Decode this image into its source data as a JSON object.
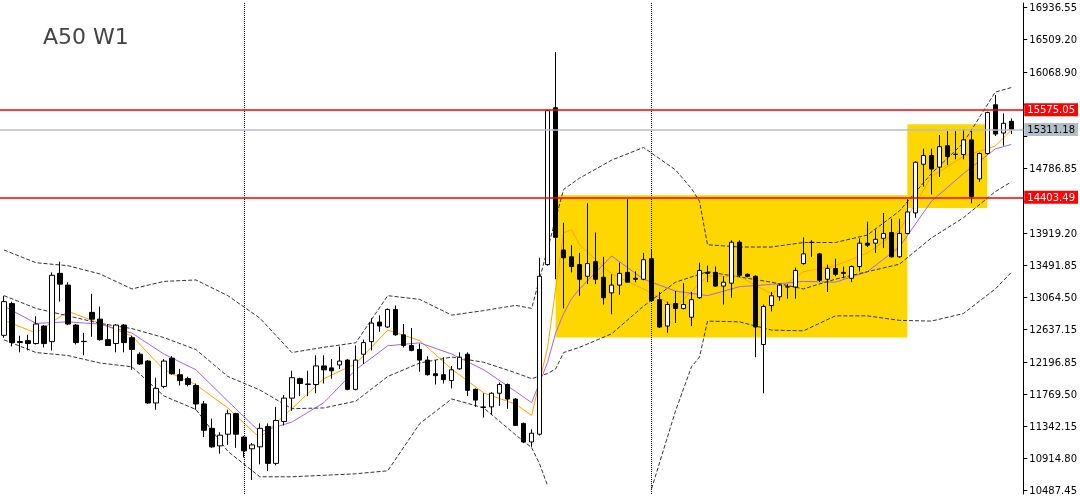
{
  "chart_data": {
    "type": "candlestick",
    "title": "A50 W1",
    "categories": [
      null,
      null,
      null,
      null,
      null,
      null,
      null,
      null,
      null,
      null,
      null,
      null,
      null,
      null,
      null,
      null,
      null,
      null,
      null,
      null,
      null,
      null,
      null,
      null,
      null,
      null,
      null,
      null,
      null,
      null,
      null,
      null,
      null,
      null,
      null,
      null,
      null,
      null,
      null,
      null,
      null,
      null,
      null,
      null,
      null,
      null,
      null,
      null,
      null,
      null,
      null,
      null,
      null,
      null,
      null,
      null,
      null,
      null,
      null,
      null,
      null,
      null,
      null,
      null,
      null,
      null,
      null,
      null,
      null,
      null,
      null,
      null,
      null,
      null,
      null,
      null,
      null,
      null,
      null,
      null,
      null,
      null,
      null,
      null,
      null,
      null,
      null,
      null,
      null,
      null,
      null,
      null,
      null,
      null,
      null,
      null,
      null,
      null,
      null,
      null,
      null,
      null,
      null,
      null,
      null,
      null,
      null,
      null,
      null,
      null,
      null,
      null,
      null,
      null,
      null,
      null,
      null,
      null,
      null,
      null,
      null,
      null,
      null,
      null,
      null,
      null,
      null,
      null
    ],
    "series": [
      {
        "color": "#000000",
        "ohlc": [
          [
            12560,
            13088,
            12528,
            13010
          ],
          [
            12984,
            13010,
            12411,
            12463
          ],
          [
            12476,
            12554,
            12333,
            12463
          ],
          [
            12489,
            12567,
            12359,
            12450
          ],
          [
            12450,
            12815,
            12437,
            12711
          ],
          [
            12684,
            12697,
            12398,
            12450
          ],
          [
            12476,
            13401,
            12359,
            13362
          ],
          [
            13388,
            13544,
            13010,
            13244
          ],
          [
            13231,
            13270,
            12697,
            12711
          ],
          [
            12697,
            12711,
            12437,
            12463
          ],
          [
            12476,
            12593,
            12294,
            12480
          ],
          [
            12867,
            13114,
            12541,
            12776
          ],
          [
            12776,
            12945,
            12489,
            12502
          ],
          [
            12502,
            12711,
            12424,
            12424
          ],
          [
            12450,
            12711,
            12333,
            12697
          ],
          [
            12697,
            12711,
            12333,
            12463
          ],
          [
            12528,
            12554,
            12099,
            12372
          ],
          [
            12307,
            12333,
            12164,
            12177
          ],
          [
            12216,
            12230,
            11645,
            11656
          ],
          [
            11656,
            11994,
            11565,
            11851
          ],
          [
            11877,
            12242,
            11851,
            12216
          ],
          [
            12255,
            12281,
            12034,
            12047
          ],
          [
            12034,
            12112,
            11890,
            11955
          ],
          [
            11981,
            12007,
            11877,
            11903
          ],
          [
            11890,
            11916,
            11565,
            11643
          ],
          [
            11643,
            11682,
            11200,
            11291
          ],
          [
            11317,
            11448,
            11057,
            11070
          ],
          [
            11083,
            11265,
            10979,
            11226
          ],
          [
            11239,
            11565,
            11096,
            11513
          ],
          [
            11513,
            11526,
            11057,
            11239
          ],
          [
            11200,
            11215,
            10927,
            11018
          ],
          [
            11044,
            11122,
            10627,
            11096
          ],
          [
            11070,
            11383,
            10836,
            11317
          ],
          [
            11343,
            11383,
            10745,
            10849
          ],
          [
            10849,
            11604,
            10823,
            11422
          ],
          [
            11409,
            11760,
            11356,
            11721
          ],
          [
            11721,
            12086,
            11552,
            11994
          ],
          [
            11981,
            11994,
            11747,
            11916
          ],
          [
            11903,
            12086,
            11747,
            11910
          ],
          [
            11903,
            12294,
            11786,
            12151
          ],
          [
            12151,
            12294,
            11916,
            12099
          ],
          [
            12125,
            12242,
            11981,
            12086
          ],
          [
            12164,
            12411,
            12112,
            12216
          ],
          [
            12229,
            12242,
            11825,
            11838
          ],
          [
            11838,
            12424,
            11825,
            12229
          ],
          [
            12307,
            12502,
            12177,
            12463
          ],
          [
            12476,
            12789,
            12359,
            12724
          ],
          [
            12737,
            12828,
            12606,
            12684
          ],
          [
            12671,
            12919,
            12658,
            12906
          ],
          [
            12906,
            12958,
            12554,
            12567
          ],
          [
            12567,
            12711,
            12398,
            12424
          ],
          [
            12424,
            12658,
            12346,
            12359
          ],
          [
            12372,
            12450,
            12073,
            12229
          ],
          [
            12229,
            12281,
            12021,
            12034
          ],
          [
            12047,
            12229,
            11903,
            12021
          ],
          [
            12034,
            12268,
            11916,
            11968
          ],
          [
            11955,
            12151,
            11851,
            12099
          ],
          [
            12112,
            12333,
            12099,
            12268
          ],
          [
            12307,
            12333,
            11747,
            11825
          ],
          [
            11838,
            11851,
            11604,
            11695
          ],
          [
            11604,
            11786,
            11461,
            11595
          ],
          [
            11604,
            11799,
            11500,
            11786
          ],
          [
            11786,
            11929,
            11617,
            11903
          ],
          [
            11903,
            11916,
            11578,
            11708
          ],
          [
            11708,
            11721,
            11350,
            11356
          ],
          [
            11383,
            11396,
            11122,
            11135
          ],
          [
            11135,
            11304,
            11070,
            11252
          ],
          [
            11239,
            13596,
            11220,
            13349
          ],
          [
            13505,
            15575,
            13490,
            15562
          ],
          [
            15601,
            16343,
            13309,
            13869
          ],
          [
            13700,
            14065,
            12919,
            13596
          ],
          [
            13609,
            13765,
            13401,
            13479
          ],
          [
            13505,
            13661,
            13088,
            13309
          ],
          [
            13349,
            14325,
            13244,
            13518
          ],
          [
            13544,
            13934,
            13244,
            13309
          ],
          [
            13336,
            13609,
            12971,
            13062
          ],
          [
            13127,
            13375,
            12841,
            13231
          ],
          [
            13231,
            13531,
            13101,
            13388
          ],
          [
            13401,
            14377,
            13270,
            13270
          ],
          [
            13322,
            13414,
            13270,
            13309
          ],
          [
            13309,
            13661,
            13296,
            13570
          ],
          [
            13583,
            13713,
            13010,
            13023
          ],
          [
            13036,
            13140,
            12658,
            12671
          ],
          [
            12684,
            13010,
            12593,
            12971
          ],
          [
            12984,
            13153,
            12724,
            12919
          ],
          [
            12919,
            13257,
            12906,
            12971
          ],
          [
            12802,
            13140,
            12684,
            13036
          ],
          [
            13062,
            13531,
            13049,
            13427
          ],
          [
            13401,
            13492,
            13270,
            13388
          ],
          [
            13401,
            13479,
            13205,
            13218
          ],
          [
            13218,
            13349,
            12971,
            13270
          ],
          [
            13257,
            13830,
            13062,
            13804
          ],
          [
            13804,
            13830,
            13336,
            13362
          ],
          [
            13375,
            13388,
            13336,
            13349
          ],
          [
            13349,
            13362,
            12268,
            12671
          ],
          [
            12437,
            12971,
            11786,
            12945
          ],
          [
            12958,
            13140,
            12880,
            13088
          ],
          [
            13075,
            13244,
            13023,
            13231
          ],
          [
            13205,
            13244,
            13049,
            13210
          ],
          [
            13205,
            13466,
            13049,
            13427
          ],
          [
            13518,
            13869,
            13505,
            13648
          ],
          [
            13804,
            13830,
            13609,
            13800
          ],
          [
            13648,
            13661,
            13270,
            13296
          ],
          [
            13309,
            13505,
            13140,
            13453
          ],
          [
            13453,
            13583,
            13349,
            13375
          ],
          [
            13401,
            13479,
            13322,
            13388
          ],
          [
            13322,
            13492,
            13270,
            13479
          ],
          [
            13479,
            13856,
            13414,
            13791
          ],
          [
            13791,
            14078,
            13739,
            13765
          ],
          [
            13791,
            13973,
            13661,
            13843
          ],
          [
            13856,
            14195,
            13726,
            13921
          ],
          [
            13934,
            14117,
            13600,
            13609
          ],
          [
            13609,
            14117,
            13596,
            13921
          ],
          [
            13921,
            14377,
            13910,
            14208
          ],
          [
            14195,
            14885,
            14130,
            14872
          ],
          [
            14846,
            15054,
            14546,
            14963
          ],
          [
            14963,
            15054,
            14442,
            14781
          ],
          [
            14807,
            15236,
            14676,
            15080
          ],
          [
            15093,
            15288,
            14833,
            14950
          ],
          [
            14976,
            15288,
            14911,
            14980
          ],
          [
            14976,
            15314,
            14911,
            15171
          ],
          [
            15171,
            15314,
            14325,
            14416
          ],
          [
            14650,
            15002,
            14611,
            14989
          ],
          [
            14989,
            15549,
            14976,
            15536
          ],
          [
            15640,
            15770,
            15223,
            15249
          ],
          [
            15263,
            15523,
            15093,
            15393
          ],
          [
            15419,
            15458,
            15249,
            15311
          ],
          null
        ]
      },
      {
        "type": "line",
        "color": "#ffa500",
        "line_style": "solid",
        "values": [
          12760,
          null,
          null,
          null,
          12590,
          null,
          null,
          null,
          12880,
          null,
          null,
          null,
          12720,
          null,
          null,
          null,
          12550,
          null,
          null,
          null,
          12100,
          null,
          null,
          null,
          11900,
          null,
          null,
          null,
          11590,
          null,
          null,
          null,
          11190,
          null,
          null,
          null,
          11580,
          null,
          null,
          null,
          11980,
          null,
          null,
          null,
          12180,
          null,
          null,
          null,
          12630,
          null,
          null,
          null,
          12490,
          null,
          null,
          null,
          12110,
          null,
          null,
          null,
          11790,
          null,
          null,
          null,
          11640,
          null,
          11490,
          null,
          12400,
          13180,
          13930,
          13970,
          13770,
          null,
          null,
          null,
          13380,
          null,
          null,
          null,
          13180,
          null,
          null,
          null,
          12940,
          null,
          null,
          null,
          13350,
          null,
          null,
          null,
          13350,
          null,
          null,
          null,
          13110,
          null,
          null,
          null,
          13410,
          null,
          null,
          null,
          13490,
          null,
          null,
          null,
          13660,
          null,
          null,
          null,
          13960,
          null,
          null,
          null,
          14680,
          null,
          null,
          null,
          14950,
          null,
          null,
          null,
          15090,
          null,
          15300,
          null
        ]
      },
      {
        "type": "line",
        "color": "#a066f0",
        "line_style": "solid",
        "values": [
          12950,
          null,
          null,
          null,
          12720,
          null,
          null,
          null,
          12740,
          null,
          null,
          null,
          12710,
          null,
          null,
          null,
          12590,
          null,
          null,
          null,
          12310,
          null,
          null,
          null,
          12100,
          null,
          null,
          null,
          11680,
          null,
          null,
          null,
          11270,
          null,
          null,
          null,
          11400,
          null,
          null,
          null,
          11660,
          null,
          null,
          null,
          12100,
          null,
          null,
          null,
          12420,
          null,
          null,
          null,
          12460,
          null,
          null,
          null,
          12310,
          null,
          null,
          null,
          12100,
          null,
          null,
          null,
          11810,
          null,
          11660,
          null,
          12200,
          12590,
          12850,
          13050,
          13180,
          null,
          null,
          null,
          13620,
          null,
          null,
          null,
          13310,
          null,
          null,
          null,
          13150,
          null,
          null,
          null,
          13090,
          null,
          null,
          null,
          13210,
          null,
          null,
          null,
          13240,
          null,
          null,
          null,
          13280,
          null,
          null,
          null,
          13270,
          null,
          null,
          null,
          13410,
          null,
          null,
          null,
          13740,
          null,
          null,
          null,
          14350,
          null,
          null,
          null,
          14720,
          null,
          null,
          null,
          15050,
          null,
          15110,
          null
        ]
      },
      {
        "type": "line",
        "color": "#333333",
        "line_style": "dashed",
        "values": [
          13700,
          null,
          null,
          null,
          13530,
          null,
          null,
          null,
          13490,
          null,
          null,
          null,
          13380,
          null,
          null,
          null,
          13180,
          null,
          null,
          null,
          13280,
          null,
          null,
          null,
          13300,
          null,
          null,
          null,
          13090,
          null,
          null,
          null,
          12790,
          null,
          null,
          null,
          12330,
          null,
          null,
          null,
          12400,
          null,
          null,
          null,
          12460,
          null,
          null,
          null,
          13090,
          null,
          null,
          null,
          13040,
          null,
          null,
          null,
          12830,
          null,
          null,
          null,
          12890,
          null,
          null,
          null,
          12960,
          null,
          12920,
          null,
          null,
          null,
          14510,
          null,
          14660,
          null,
          null,
          null,
          14900,
          null,
          null,
          null,
          15070,
          null,
          null,
          null,
          14770,
          null,
          14520,
          14350,
          13770,
          null,
          null,
          null,
          13740,
          null,
          null,
          null,
          13740,
          null,
          null,
          null,
          13800,
          null,
          null,
          null,
          13800,
          null,
          null,
          null,
          13900,
          null,
          null,
          null,
          14220,
          null,
          null,
          null,
          14720,
          null,
          null,
          null,
          15130,
          null,
          null,
          null,
          15810,
          null,
          15870,
          null
        ]
      },
      {
        "type": "line",
        "color": "#333333",
        "line_style": "dashed",
        "values": [
          13090,
          null,
          null,
          null,
          12920,
          null,
          null,
          null,
          12820,
          null,
          null,
          null,
          12720,
          null,
          null,
          null,
          12650,
          null,
          null,
          null,
          12530,
          null,
          null,
          null,
          12370,
          null,
          null,
          null,
          12010,
          null,
          null,
          null,
          11830,
          null,
          null,
          null,
          11580,
          null,
          null,
          null,
          11590,
          null,
          null,
          null,
          11680,
          null,
          null,
          null,
          12010,
          null,
          null,
          null,
          12190,
          null,
          null,
          null,
          12270,
          null,
          null,
          null,
          12200,
          null,
          null,
          null,
          12060,
          null,
          11980,
          null,
          12050,
          12110,
          12330,
          null,
          12400,
          null,
          null,
          null,
          12580,
          null,
          null,
          null,
          12950,
          null,
          null,
          null,
          13270,
          null,
          null,
          null,
          13410,
          null,
          null,
          null,
          13340,
          null,
          null,
          null,
          13270,
          null,
          null,
          null,
          13180,
          null,
          null,
          null,
          13310,
          null,
          null,
          null,
          13410,
          null,
          null,
          null,
          13510,
          null,
          null,
          null,
          13860,
          null,
          null,
          null,
          14130,
          null,
          null,
          null,
          14480,
          null,
          14610,
          null
        ]
      },
      {
        "type": "line",
        "color": "#333333",
        "line_style": "dashed",
        "values": [
          12500,
          null,
          null,
          null,
          12330,
          null,
          null,
          null,
          12290,
          null,
          null,
          null,
          12190,
          null,
          null,
          null,
          12140,
          null,
          null,
          null,
          11750,
          null,
          null,
          null,
          11570,
          null,
          null,
          null,
          11010,
          null,
          null,
          null,
          10670,
          null,
          null,
          null,
          10670,
          null,
          null,
          null,
          10690,
          null,
          null,
          null,
          10710,
          null,
          null,
          null,
          10750,
          null,
          null,
          null,
          11380,
          null,
          null,
          null,
          11710,
          null,
          null,
          null,
          11590,
          null,
          null,
          null,
          11230,
          null,
          11060,
          10840,
          10550,
          null,
          null,
          null,
          null,
          null,
          null,
          null,
          null,
          null,
          null,
          null,
          null,
          null,
          null,
          null,
          null,
          null,
          null,
          null,
          null,
          null,
          null,
          null,
          null,
          null,
          null,
          null,
          null,
          null,
          null,
          null,
          null,
          null,
          null,
          null,
          null,
          null,
          null,
          null,
          null,
          null,
          null,
          null,
          null,
          null,
          null,
          null,
          null,
          null,
          null,
          null,
          null,
          null,
          null,
          null,
          null,
          null,
          null,
          null
        ]
      },
      {
        "type": "line",
        "color": "#333333",
        "line_style": "dashed",
        "values": [
          null,
          null,
          null,
          null,
          null,
          null,
          null,
          null,
          null,
          null,
          null,
          null,
          null,
          null,
          null,
          null,
          null,
          null,
          null,
          null,
          null,
          null,
          null,
          null,
          null,
          null,
          null,
          null,
          null,
          null,
          null,
          null,
          null,
          null,
          null,
          null,
          null,
          null,
          null,
          null,
          null,
          null,
          null,
          null,
          null,
          null,
          null,
          null,
          null,
          null,
          null,
          null,
          null,
          null,
          null,
          null,
          null,
          null,
          null,
          null,
          null,
          null,
          null,
          null,
          null,
          null,
          null,
          null,
          null,
          null,
          null,
          null,
          null,
          null,
          null,
          null,
          null,
          null,
          null,
          null,
          null,
          10510,
          null,
          null,
          11550,
          null,
          12140,
          12270,
          12750,
          null,
          null,
          null,
          12740,
          null,
          null,
          null,
          12630,
          null,
          null,
          null,
          12620,
          null,
          null,
          null,
          12820,
          null,
          null,
          null,
          12820,
          null,
          null,
          null,
          12760,
          null,
          null,
          null,
          12750,
          null,
          null,
          null,
          12850,
          null,
          null,
          null,
          13180,
          null,
          13400,
          null
        ]
      }
    ],
    "ylim": [
      10440,
      17000
    ],
    "yticks": [
      10487.45,
      {
        "value": 10914.8,
        "label": "10914.80"
      },
      11342.15,
      {
        "value": 11769.5,
        "label": "11769.50"
      },
      12196.85,
      12637.15,
      {
        "value": 13064.5,
        "label": "13064.50"
      },
      13491.85,
      {
        "value": 13919.2,
        "label": "13919.20"
      },
      {
        "value": 14346.55,
        "label": null
      },
      14786.85,
      {
        "value": 15214.2,
        "label": null
      },
      {
        "value": 15641.55,
        "label": null
      },
      {
        "value": 16068.9,
        "label": "16068.90"
      },
      {
        "value": 16509.2,
        "label": "16509.20"
      },
      16936.55
    ],
    "tick_labels": "y",
    "ref_lines": [
      {
        "axis": "y",
        "value": 15575.05,
        "label": "15575.05",
        "color": "#ff0000",
        "line_style": "solid"
      },
      {
        "axis": "y",
        "value": 14403.49,
        "label": "14403.49",
        "color": "#ff0000",
        "line_style": "solid"
      },
      {
        "axis": "y",
        "value": 15311.18,
        "label": "15311.18",
        "color": "#b4bec8",
        "line_style": "solid"
      }
    ],
    "bands": [
      {
        "axis": "y",
        "from": 12530,
        "to": 14430,
        "color": "#ffd700"
      },
      {
        "axis": "y",
        "from": 14260,
        "to": 15380,
        "color": "#ffd700"
      }
    ]
  }
}
